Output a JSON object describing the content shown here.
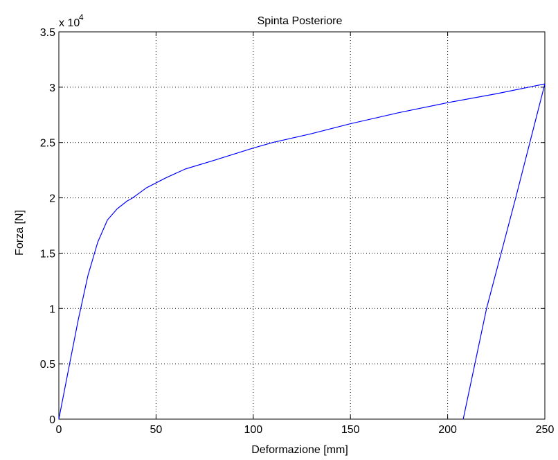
{
  "chart_data": {
    "type": "line",
    "title": "Spinta Posteriore",
    "xlabel": "Deformazione [mm]",
    "ylabel": "Forza [N]",
    "y_multiplier_label": "x 10",
    "y_multiplier_exponent": "4",
    "xlim": [
      0,
      250
    ],
    "ylim": [
      0,
      3.5
    ],
    "xticks": [
      0,
      50,
      100,
      150,
      200,
      250
    ],
    "yticks": [
      0,
      0.5,
      1,
      1.5,
      2,
      2.5,
      3,
      3.5
    ],
    "xtick_labels": [
      "0",
      "50",
      "100",
      "150",
      "200",
      "250"
    ],
    "ytick_labels": [
      "0",
      "0.5",
      "1",
      "1.5",
      "2",
      "2.5",
      "3",
      "3.5"
    ],
    "grid": true,
    "line_color": "#0000ff",
    "series": [
      {
        "x": [
          0,
          5,
          10,
          15,
          20,
          25,
          30,
          35,
          38,
          45,
          55,
          65,
          80,
          100,
          110,
          130,
          150,
          175,
          200,
          225,
          250,
          235,
          220,
          208
        ],
        "values": [
          0,
          0.45,
          0.9,
          1.3,
          1.6,
          1.8,
          1.9,
          1.97,
          2.0,
          2.09,
          2.18,
          2.26,
          2.34,
          2.45,
          2.5,
          2.58,
          2.67,
          2.77,
          2.86,
          2.94,
          3.03,
          2.0,
          1.0,
          0
        ]
      }
    ]
  }
}
